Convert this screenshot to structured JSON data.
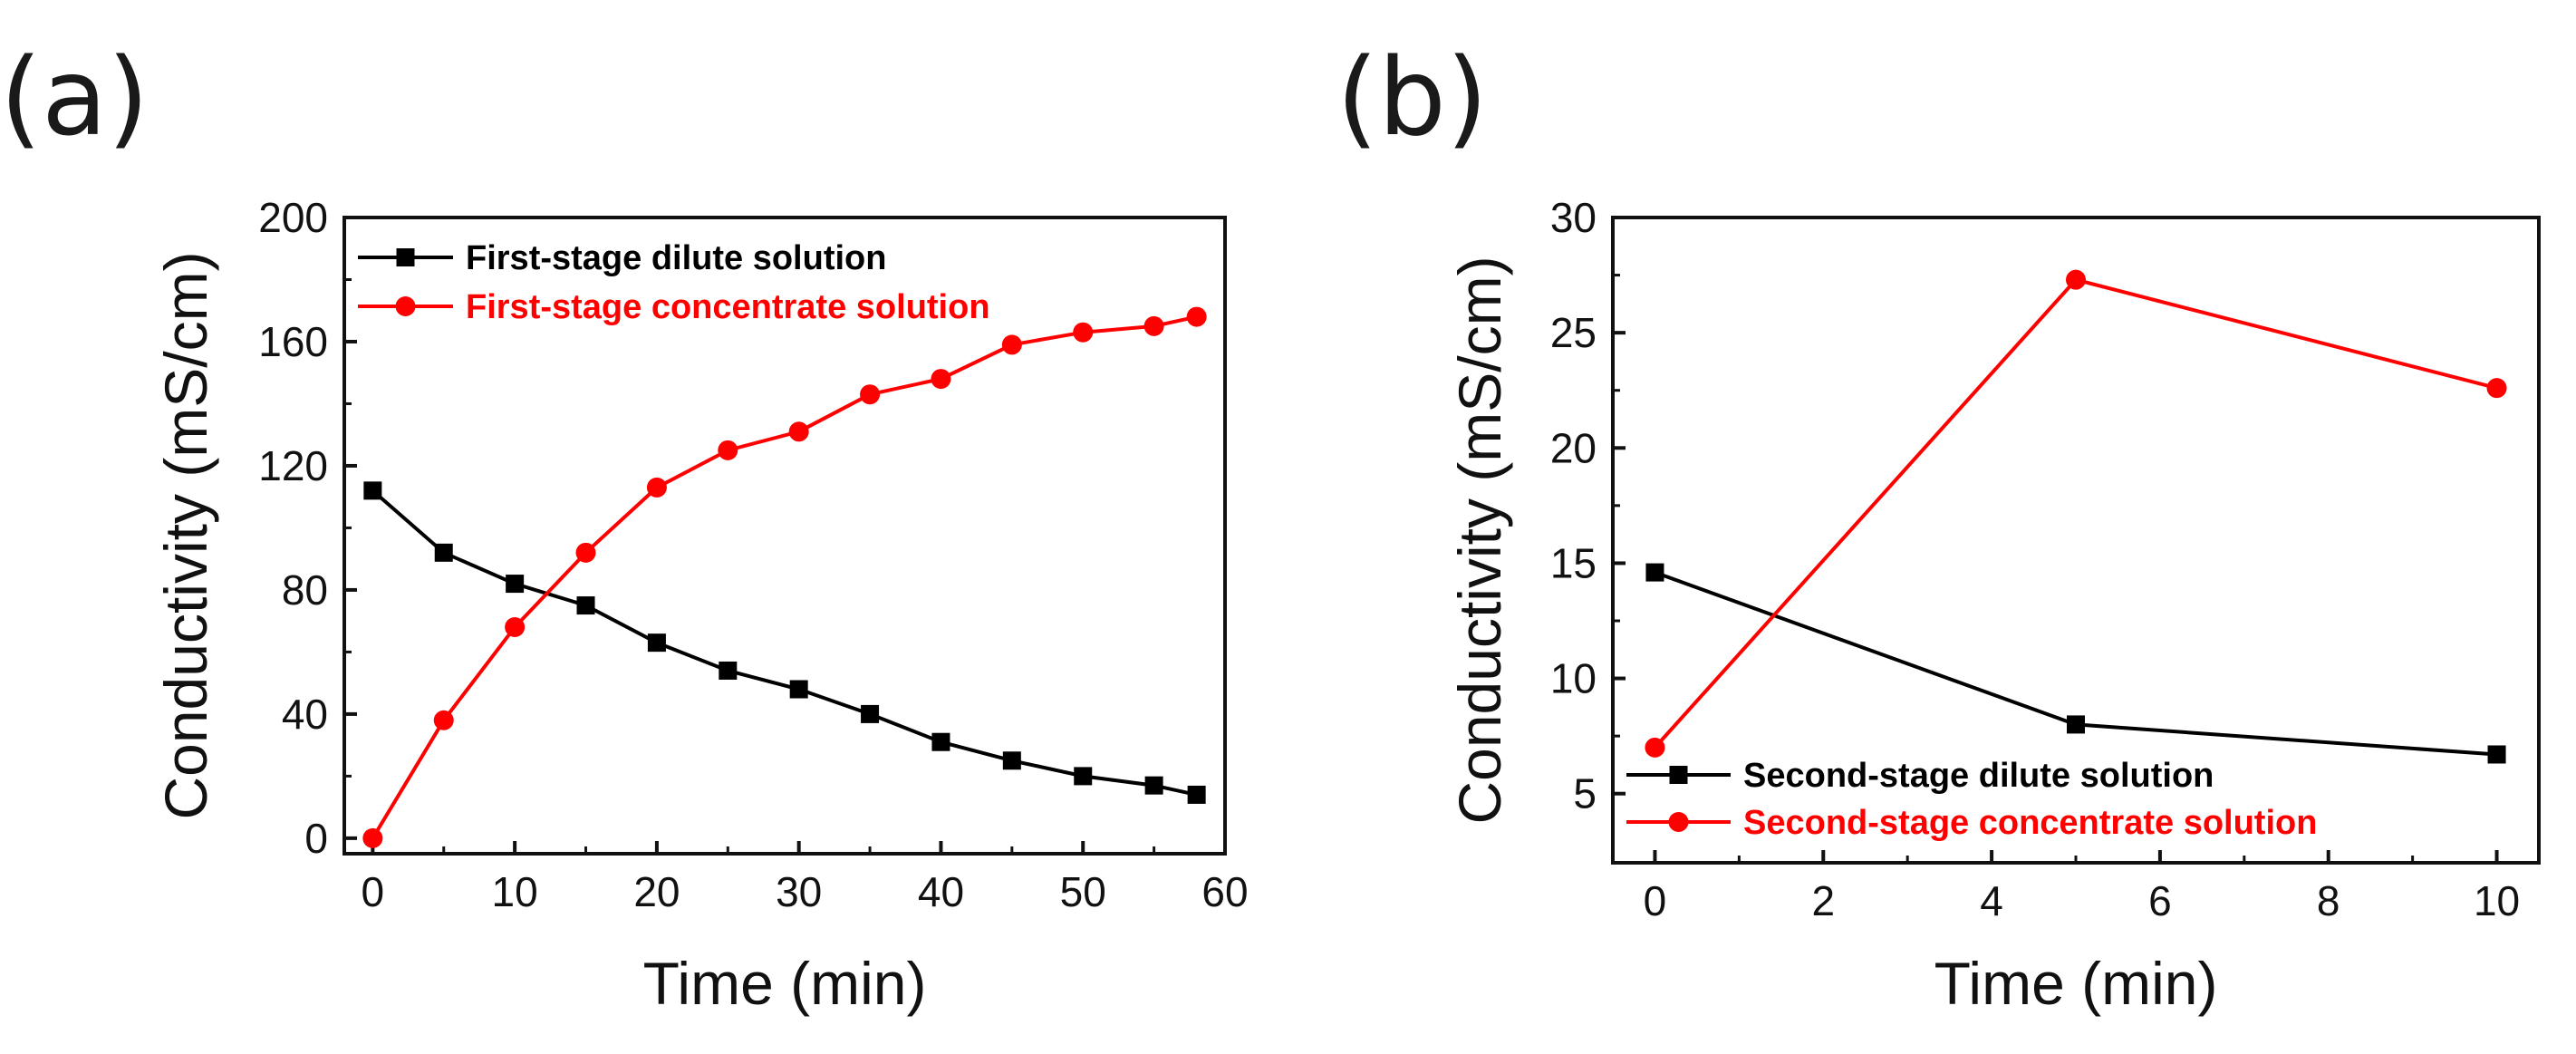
{
  "chart_data": [
    {
      "type": "line",
      "panel_label": "(a)",
      "xlabel": "Time (min)",
      "ylabel": "Conductivity (mS/cm)",
      "xlim": [
        -2,
        60
      ],
      "ylim": [
        -5,
        200
      ],
      "xticks": [
        0,
        10,
        20,
        30,
        40,
        50,
        60
      ],
      "yticks": [
        0,
        40,
        80,
        120,
        160,
        200
      ],
      "legend_position": "top-left",
      "series": [
        {
          "name": "First-stage dilute solution",
          "color": "#000000",
          "marker": "square",
          "x": [
            0,
            5,
            10,
            15,
            20,
            25,
            30,
            35,
            40,
            45,
            50,
            55,
            58
          ],
          "y": [
            112,
            92,
            82,
            75,
            63,
            54,
            48,
            40,
            31,
            25,
            20,
            17,
            14
          ]
        },
        {
          "name": "First-stage concentrate solution",
          "color": "#ff0000",
          "marker": "circle",
          "x": [
            0,
            5,
            10,
            15,
            20,
            25,
            30,
            35,
            40,
            45,
            50,
            55,
            58
          ],
          "y": [
            0,
            38,
            68,
            92,
            113,
            125,
            131,
            143,
            148,
            159,
            163,
            165,
            168
          ]
        }
      ]
    },
    {
      "type": "line",
      "panel_label": "(b)",
      "xlabel": "Time (min)",
      "ylabel": "Conductivity (mS/cm)",
      "xlim": [
        -0.5,
        10.5
      ],
      "ylim": [
        2,
        30
      ],
      "xticks": [
        0,
        2,
        4,
        6,
        8,
        10
      ],
      "yticks": [
        5,
        10,
        15,
        20,
        25,
        30
      ],
      "legend_position": "bottom-left",
      "series": [
        {
          "name": "Second-stage dilute solution",
          "color": "#000000",
          "marker": "square",
          "x": [
            0,
            5,
            10
          ],
          "y": [
            14.6,
            8.0,
            6.7
          ]
        },
        {
          "name": "Second-stage concentrate solution",
          "color": "#ff0000",
          "marker": "circle",
          "x": [
            0,
            5,
            10
          ],
          "y": [
            7.0,
            27.3,
            22.6
          ]
        }
      ]
    }
  ]
}
